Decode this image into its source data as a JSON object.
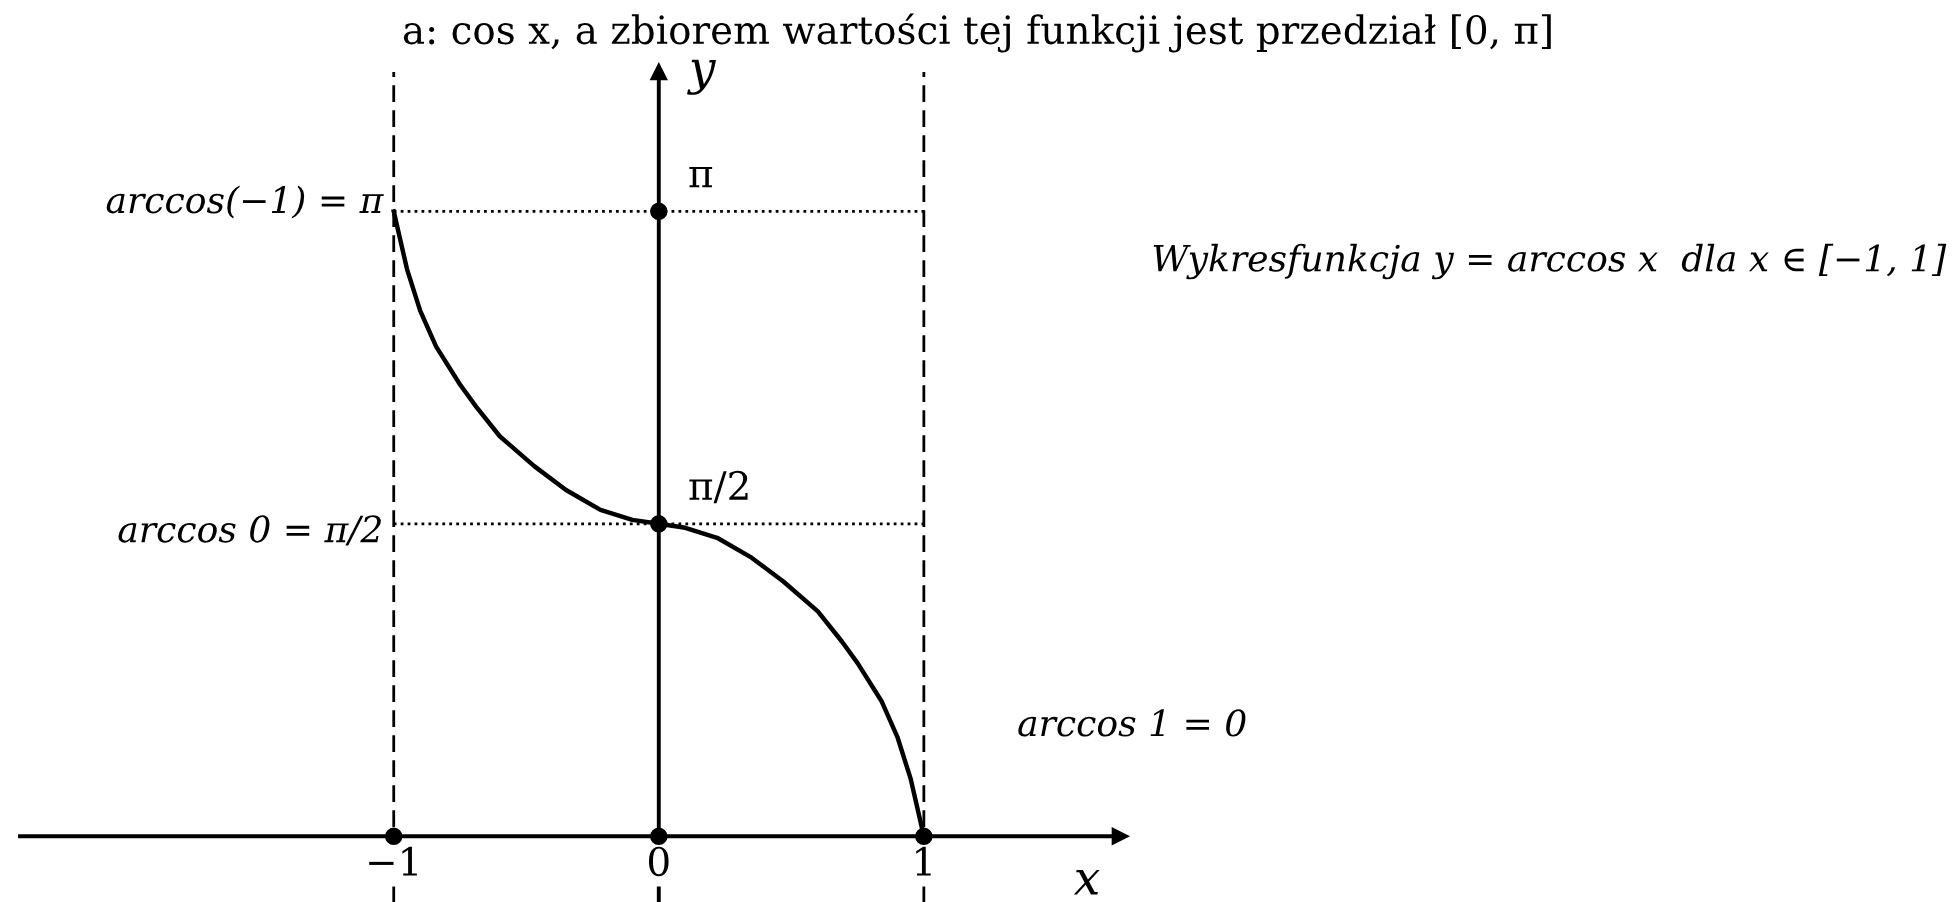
{
  "chart_data": {
    "type": "line",
    "title": "a: cos x, a zbiorem wartości tej funkcji jest przedział [0, π]",
    "xlabel": "x",
    "ylabel": "y",
    "xlim": [
      -2.41,
      1.74
    ],
    "ylim": [
      -0.33,
      3.84
    ],
    "xticks": [
      -1,
      0,
      1
    ],
    "yticks": [
      {
        "value": 1.57,
        "label": "π/2"
      },
      {
        "value": 3.14,
        "label": "π"
      }
    ],
    "series": [
      {
        "color": "#000000",
        "marker": "none",
        "line_style": "solid",
        "x": [
          -1,
          -0.95,
          -0.9,
          -0.84,
          -0.75,
          -0.69,
          -0.6,
          -0.47,
          -0.35,
          -0.22,
          -0.1,
          0,
          0.1,
          0.22,
          0.35,
          0.47,
          0.6,
          0.69,
          0.75,
          0.84,
          0.9,
          0.95,
          1
        ],
        "values": [
          3.14,
          2.85,
          2.64,
          2.46,
          2.27,
          2.16,
          2.01,
          1.86,
          1.74,
          1.64,
          1.59,
          1.57,
          1.55,
          1.5,
          1.4,
          1.28,
          1.13,
          0.98,
          0.87,
          0.68,
          0.5,
          0.29,
          0
        ]
      },
      {
        "type": "scatter",
        "color": "#000000",
        "marker": "circle",
        "x": [
          -1,
          0,
          1,
          0,
          0
        ],
        "values": [
          0,
          0,
          0,
          1.57,
          3.14
        ]
      }
    ],
    "ref_lines": [
      {
        "axis": "x",
        "value": -1,
        "color": "#000000",
        "line_style": "dashed"
      },
      {
        "axis": "x",
        "value": 1,
        "color": "#000000",
        "line_style": "dashed"
      },
      {
        "axis": "y",
        "value": 3.14,
        "color": "#000000",
        "line_style": "dotted"
      },
      {
        "axis": "y",
        "value": 1.57,
        "color": "#000000",
        "line_style": "dotted"
      }
    ],
    "annotations": [
      "arccos(−1) = π",
      "arccos 0 = π/2",
      "arccos 1 = 0",
      "Wykresfunkcja y = arccos x  dla x ∈ [−1, 1]"
    ],
    "grid": false,
    "legend": false
  }
}
